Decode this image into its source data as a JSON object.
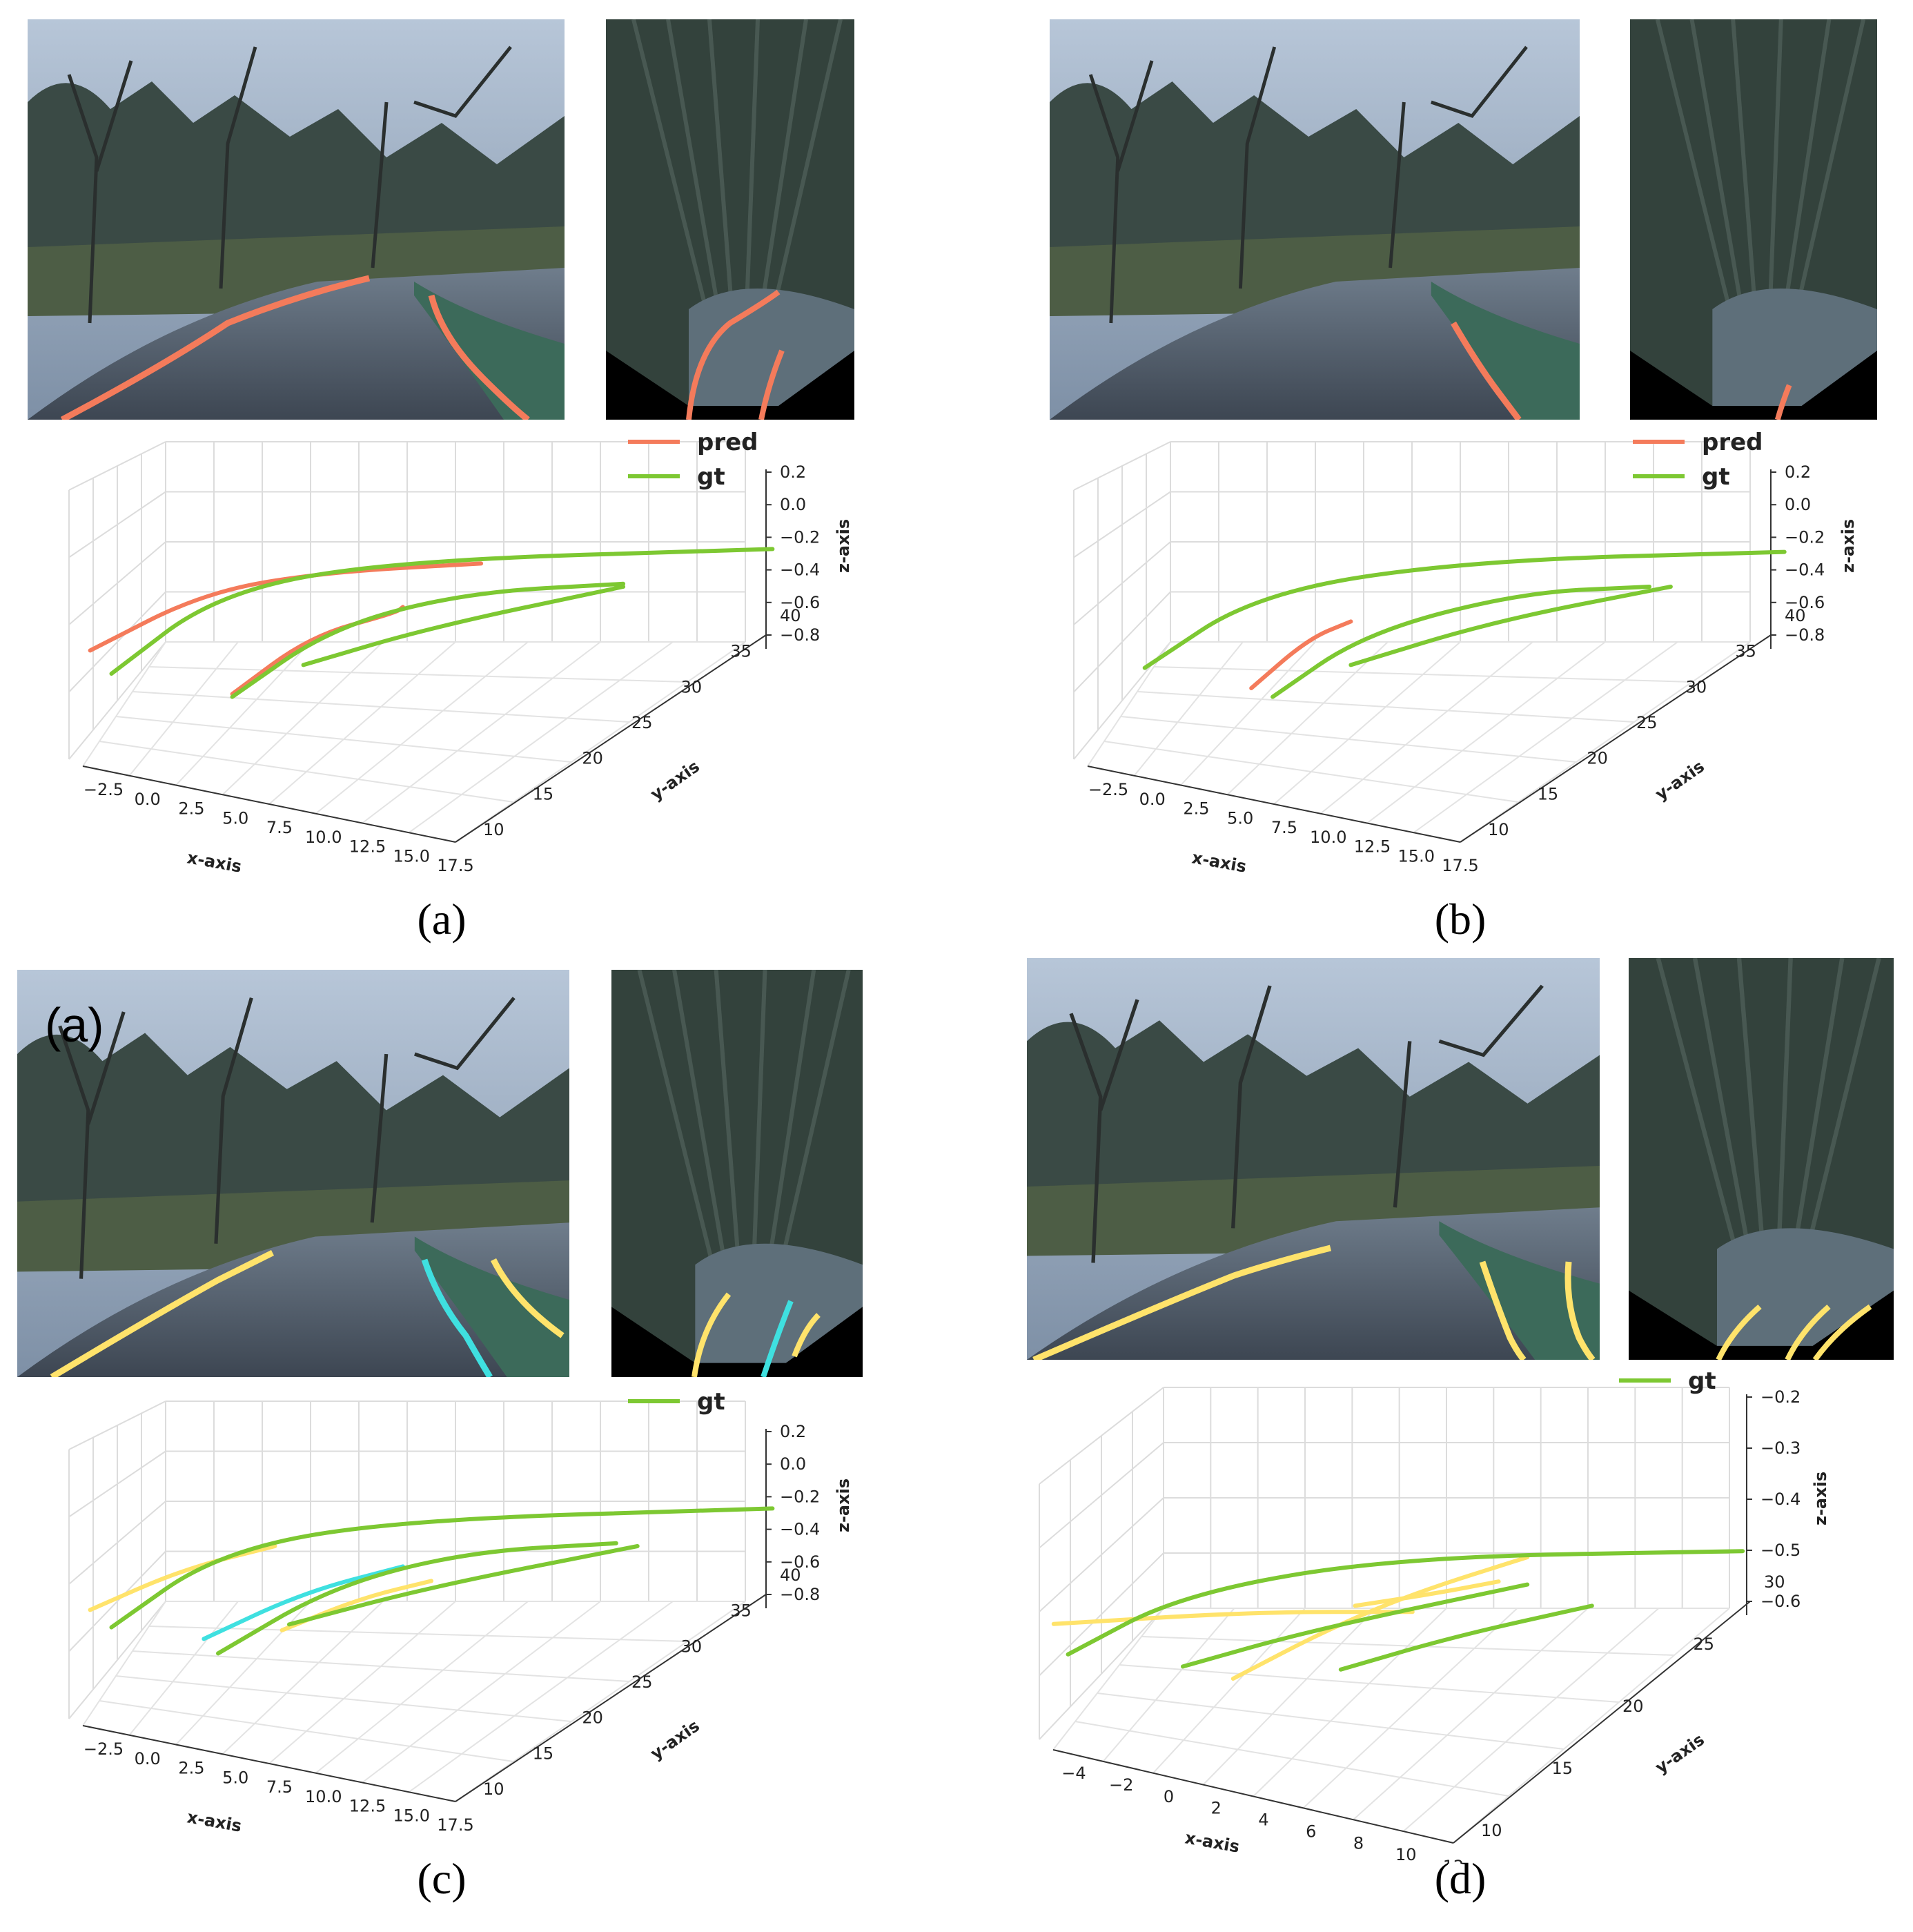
{
  "figure": {
    "panels": [
      {
        "id": "a",
        "caption": "(a)",
        "legend": [
          {
            "label": "pred",
            "color": "#f47b5b"
          },
          {
            "label": "gt",
            "color": "#7dc832"
          }
        ],
        "photo_label": ""
      },
      {
        "id": "b",
        "caption": "(b)",
        "legend": [
          {
            "label": "pred",
            "color": "#f47b5b"
          },
          {
            "label": "gt",
            "color": "#7dc832"
          }
        ],
        "photo_label": ""
      },
      {
        "id": "c",
        "caption": "(c)",
        "legend": [
          {
            "label": "gt",
            "color": "#7dc832"
          }
        ],
        "photo_label": "(a)"
      },
      {
        "id": "d",
        "caption": "(d)",
        "legend": [
          {
            "label": "gt",
            "color": "#7dc832"
          }
        ],
        "photo_label": ""
      }
    ]
  },
  "chart_data": [
    {
      "type": "line",
      "panel": "a",
      "xlabel": "x-axis",
      "ylabel": "y-axis",
      "zlabel": "z-axis",
      "xticks": [
        "−2.5",
        "0.0",
        "2.5",
        "5.0",
        "7.5",
        "10.0",
        "12.5",
        "15.0",
        "17.5"
      ],
      "yticks": [
        "10",
        "15",
        "20",
        "25",
        "30",
        "35",
        "40"
      ],
      "zticks": [
        "0.2",
        "0.0",
        "−0.2",
        "−0.4",
        "−0.6",
        "−0.8"
      ],
      "legend_placement": "top-right",
      "series": [
        {
          "name": "pred",
          "color": "#f47b5b",
          "lines": [
            [
              [
                0.02,
                0.72
              ],
              [
                0.18,
                0.52
              ],
              [
                0.35,
                0.45
              ],
              [
                0.57,
                0.42
              ]
            ],
            [
              [
                0.22,
                0.87
              ],
              [
                0.33,
                0.67
              ],
              [
                0.45,
                0.59
              ],
              [
                0.46,
                0.57
              ]
            ]
          ]
        },
        {
          "name": "gt",
          "color": "#7dc832",
          "lines": [
            [
              [
                0.05,
                0.8
              ],
              [
                0.2,
                0.52
              ],
              [
                0.45,
                0.41
              ],
              [
                0.98,
                0.37
              ]
            ],
            [
              [
                0.22,
                0.88
              ],
              [
                0.36,
                0.64
              ],
              [
                0.55,
                0.52
              ],
              [
                0.77,
                0.49
              ]
            ],
            [
              [
                0.32,
                0.77
              ],
              [
                0.5,
                0.64
              ],
              [
                0.77,
                0.5
              ]
            ]
          ]
        }
      ]
    },
    {
      "type": "line",
      "panel": "b",
      "xlabel": "x-axis",
      "ylabel": "y-axis",
      "zlabel": "z-axis",
      "xticks": [
        "−2.5",
        "0.0",
        "2.5",
        "5.0",
        "7.5",
        "10.0",
        "12.5",
        "15.0",
        "17.5"
      ],
      "yticks": [
        "10",
        "15",
        "20",
        "25",
        "30",
        "35",
        "40"
      ],
      "zticks": [
        "0.2",
        "0.0",
        "−0.2",
        "−0.4",
        "−0.6",
        "−0.8"
      ],
      "legend_placement": "top-right",
      "series": [
        {
          "name": "pred",
          "color": "#f47b5b",
          "lines": [
            [
              [
                0.24,
                0.85
              ],
              [
                0.32,
                0.68
              ],
              [
                0.38,
                0.62
              ]
            ]
          ]
        },
        {
          "name": "gt",
          "color": "#7dc832",
          "lines": [
            [
              [
                0.09,
                0.78
              ],
              [
                0.25,
                0.52
              ],
              [
                0.55,
                0.41
              ],
              [
                0.99,
                0.38
              ]
            ],
            [
              [
                0.27,
                0.88
              ],
              [
                0.4,
                0.66
              ],
              [
                0.62,
                0.52
              ],
              [
                0.8,
                0.5
              ]
            ],
            [
              [
                0.38,
                0.77
              ],
              [
                0.58,
                0.62
              ],
              [
                0.83,
                0.5
              ]
            ]
          ]
        }
      ]
    },
    {
      "type": "line",
      "panel": "c",
      "xlabel": "x-axis",
      "ylabel": "y-axis",
      "zlabel": "z-axis",
      "xticks": [
        "−2.5",
        "0.0",
        "2.5",
        "5.0",
        "7.5",
        "10.0",
        "12.5",
        "15.0",
        "17.5"
      ],
      "yticks": [
        "10",
        "15",
        "20",
        "25",
        "30",
        "35",
        "40"
      ],
      "zticks": [
        "0.2",
        "0.0",
        "−0.2",
        "−0.4",
        "−0.6",
        "−0.8"
      ],
      "legend_placement": "top-right",
      "series": [
        {
          "name": "",
          "color": "#ffe36b",
          "lines": [
            [
              [
                0.02,
                0.72
              ],
              [
                0.15,
                0.58
              ],
              [
                0.28,
                0.5
              ]
            ],
            [
              [
                0.29,
                0.79
              ],
              [
                0.4,
                0.68
              ],
              [
                0.5,
                0.62
              ]
            ]
          ]
        },
        {
          "name": "",
          "color": "#3fe0e0",
          "lines": [
            [
              [
                0.18,
                0.82
              ],
              [
                0.32,
                0.66
              ],
              [
                0.46,
                0.57
              ]
            ]
          ]
        },
        {
          "name": "gt",
          "color": "#7dc832",
          "lines": [
            [
              [
                0.05,
                0.78
              ],
              [
                0.2,
                0.52
              ],
              [
                0.45,
                0.41
              ],
              [
                0.98,
                0.37
              ]
            ],
            [
              [
                0.2,
                0.87
              ],
              [
                0.36,
                0.64
              ],
              [
                0.55,
                0.52
              ],
              [
                0.76,
                0.49
              ]
            ],
            [
              [
                0.3,
                0.77
              ],
              [
                0.5,
                0.64
              ],
              [
                0.79,
                0.5
              ]
            ]
          ]
        }
      ]
    },
    {
      "type": "line",
      "panel": "d",
      "xlabel": "x-axis",
      "ylabel": "y-axis",
      "zlabel": "z-axis",
      "xticks": [
        "−4",
        "−2",
        "0",
        "2",
        "4",
        "6",
        "8",
        "10",
        "12"
      ],
      "yticks": [
        "10",
        "15",
        "20",
        "25",
        "30"
      ],
      "zticks": [
        "−0.2",
        "−0.3",
        "−0.4",
        "−0.5",
        "−0.6"
      ],
      "legend_placement": "top-right",
      "series": [
        {
          "name": "",
          "color": "#ffe36b",
          "lines": [
            [
              [
                0.02,
                0.62
              ],
              [
                0.3,
                0.58
              ],
              [
                0.52,
                0.58
              ]
            ],
            [
              [
                0.27,
                0.8
              ],
              [
                0.4,
                0.64
              ],
              [
                0.52,
                0.52
              ],
              [
                0.68,
                0.4
              ]
            ],
            [
              [
                0.44,
                0.56
              ],
              [
                0.55,
                0.52
              ],
              [
                0.64,
                0.48
              ]
            ]
          ]
        },
        {
          "name": "gt",
          "color": "#7dc832",
          "lines": [
            [
              [
                0.04,
                0.72
              ],
              [
                0.2,
                0.52
              ],
              [
                0.5,
                0.4
              ],
              [
                0.98,
                0.38
              ]
            ],
            [
              [
                0.2,
                0.76
              ],
              [
                0.38,
                0.64
              ],
              [
                0.68,
                0.49
              ]
            ],
            [
              [
                0.42,
                0.77
              ],
              [
                0.58,
                0.66
              ],
              [
                0.77,
                0.56
              ]
            ]
          ]
        }
      ]
    }
  ]
}
